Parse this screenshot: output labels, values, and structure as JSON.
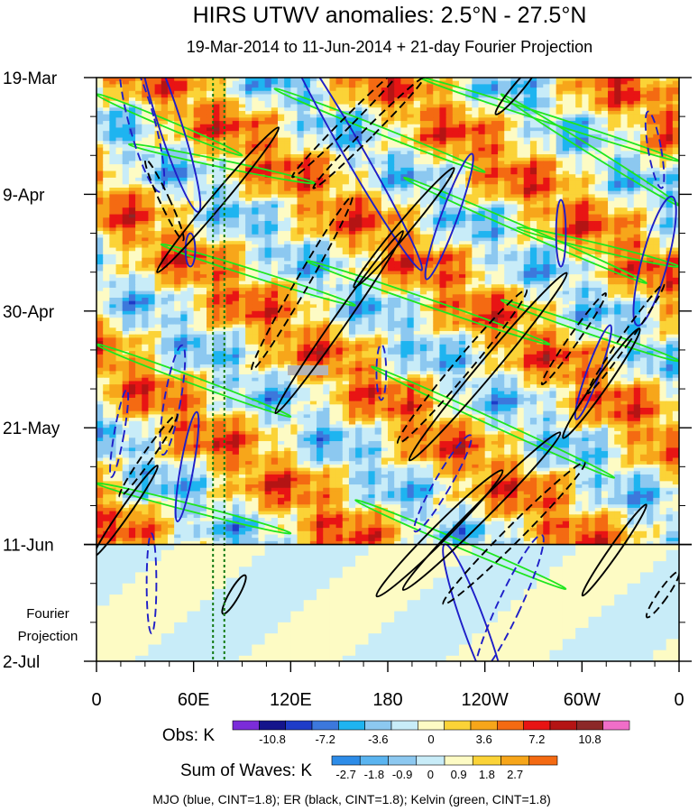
{
  "chart_data": {
    "type": "heatmap",
    "title": "HIRS UTWV anomalies: 2.5°N - 27.5°N",
    "subtitle": "19-Mar-2014 to 11-Jun-2014 + 21-day Fourier Projection",
    "x_tick_labels": [
      "0",
      "60E",
      "120E",
      "180",
      "120W",
      "60W",
      "0"
    ],
    "x_ticks_deg": [
      0,
      60,
      120,
      180,
      240,
      300,
      360
    ],
    "xlim": [
      0,
      360
    ],
    "y_tick_labels": [
      "19-Mar",
      "9-Apr",
      "30-Apr",
      "21-May",
      "11-Jun",
      "2-Jul"
    ],
    "y_ticks_day": [
      0,
      21,
      42,
      63,
      84,
      105
    ],
    "ylim": [
      0,
      105
    ],
    "projection_start_day": 84,
    "projection_label_line1": "Fourier",
    "projection_label_line2": "Projection",
    "reference_longitudes": [
      72,
      79
    ],
    "obs_colorbar": {
      "label": "Obs: K",
      "tick_labels": [
        "-10.8",
        "-7.2",
        "-3.6",
        "0",
        "3.6",
        "7.2",
        "10.8"
      ],
      "colors": [
        "#7b2cd9",
        "#14148c",
        "#1e3cc8",
        "#3c78dc",
        "#1eb4f0",
        "#8cc8f0",
        "#c8ecf8",
        "#fdfbc4",
        "#fbd337",
        "#f7a61a",
        "#f46a12",
        "#e81414",
        "#b41414",
        "#8c2828",
        "#f06ec8"
      ]
    },
    "waves_colorbar": {
      "label": "Sum of Waves: K",
      "tick_labels": [
        "-2.7",
        "-1.8",
        "-0.9",
        "0",
        "0.9",
        "1.8",
        "2.7"
      ],
      "colors": [
        "#2d8ce8",
        "#5ab4f0",
        "#8cc8f0",
        "#c8ecf8",
        "#fdfbc4",
        "#fbd337",
        "#f7a61a",
        "#f46a12"
      ]
    },
    "legend_text": "MJO (blue, CINT=1.8); ER (black, CINT=1.8); Kelvin (green, CINT=1.8)",
    "series": [
      {
        "name": "MJO",
        "color": "#1e1ec8"
      },
      {
        "name": "ER",
        "color": "#000000"
      },
      {
        "name": "Kelvin",
        "color": "#1ee61e"
      }
    ],
    "mjo_contours": [
      {
        "lon": 28,
        "day": 8,
        "rx": 8,
        "ry": 13,
        "rot": -15,
        "dash": true
      },
      {
        "lon": 45,
        "day": 8,
        "rx": 7,
        "ry": 17,
        "rot": -18,
        "dash": false
      },
      {
        "lon": 58,
        "day": 31,
        "rx": 3,
        "ry": 3,
        "rot": 0,
        "dash": false
      },
      {
        "lon": 47,
        "day": 58,
        "rx": 5,
        "ry": 10,
        "rot": 10,
        "dash": true
      },
      {
        "lon": 56,
        "day": 70,
        "rx": 4,
        "ry": 10,
        "rot": 10,
        "dash": false
      },
      {
        "lon": 14,
        "day": 64,
        "rx": 3,
        "ry": 8,
        "rot": 10,
        "dash": true
      },
      {
        "lon": 34,
        "day": 91,
        "rx": 3,
        "ry": 9,
        "rot": 0,
        "dash": true
      },
      {
        "lon": 158,
        "day": 13,
        "rx": 6,
        "ry": 25,
        "rot": -30,
        "dash": false
      },
      {
        "lon": 218,
        "day": 25,
        "rx": 5,
        "ry": 12,
        "rot": 20,
        "dash": false
      },
      {
        "lon": 214,
        "day": 73,
        "rx": 5,
        "ry": 10,
        "rot": 30,
        "dash": true
      },
      {
        "lon": 234,
        "day": 99,
        "rx": 7,
        "ry": 16,
        "rot": -20,
        "dash": false
      },
      {
        "lon": 255,
        "day": 95,
        "rx": 7,
        "ry": 14,
        "rot": 25,
        "dash": true
      },
      {
        "lon": 307,
        "day": 53,
        "rx": 4,
        "ry": 9,
        "rot": 20,
        "dash": false
      },
      {
        "lon": 287,
        "day": 28,
        "rx": 3,
        "ry": 6,
        "rot": 0,
        "dash": false
      },
      {
        "lon": 345,
        "day": 33,
        "rx": 8,
        "ry": 12,
        "rot": 15,
        "dash": false
      },
      {
        "lon": 345,
        "day": 13,
        "rx": 4,
        "ry": 7,
        "rot": -10,
        "dash": true
      },
      {
        "lon": 176,
        "day": 53,
        "rx": 3,
        "ry": 5,
        "rot": 0,
        "dash": true
      }
    ],
    "er_contours": [
      {
        "lon": 42,
        "day": 22,
        "rx": 3,
        "ry": 8,
        "rot": -25,
        "dash": true
      },
      {
        "lon": 75,
        "day": 22,
        "rx": 4,
        "ry": 17,
        "rot": 40,
        "dash": false
      },
      {
        "lon": 127,
        "day": 37,
        "rx": 4,
        "ry": 18,
        "rot": 30,
        "dash": true
      },
      {
        "lon": 150,
        "day": 44,
        "rx": 4,
        "ry": 20,
        "rot": 35,
        "dash": false
      },
      {
        "lon": 155,
        "day": 8,
        "rx": 3,
        "ry": 14,
        "rot": 45,
        "dash": true
      },
      {
        "lon": 168,
        "day": 10,
        "rx": 3,
        "ry": 14,
        "rot": 45,
        "dash": true
      },
      {
        "lon": 190,
        "day": 27,
        "rx": 4,
        "ry": 14,
        "rot": 40,
        "dash": false
      },
      {
        "lon": 226,
        "day": 52,
        "rx": 5,
        "ry": 18,
        "rot": 40,
        "dash": true
      },
      {
        "lon": 242,
        "day": 52,
        "rx": 5,
        "ry": 22,
        "rot": 40,
        "dash": false
      },
      {
        "lon": 212,
        "day": 82,
        "rx": 5,
        "ry": 16,
        "rot": 45,
        "dash": false
      },
      {
        "lon": 238,
        "day": 78,
        "rx": 5,
        "ry": 20,
        "rot": 45,
        "dash": false
      },
      {
        "lon": 258,
        "day": 82,
        "rx": 5,
        "ry": 18,
        "rot": 45,
        "dash": true
      },
      {
        "lon": 312,
        "day": 55,
        "rx": 4,
        "ry": 12,
        "rot": 35,
        "dash": false
      },
      {
        "lon": 295,
        "day": 47,
        "rx": 3,
        "ry": 10,
        "rot": 35,
        "dash": true
      },
      {
        "lon": 327,
        "day": 47,
        "rx": 3,
        "ry": 12,
        "rot": 35,
        "dash": true
      },
      {
        "lon": 320,
        "day": 85,
        "rx": 3,
        "ry": 10,
        "rot": 35,
        "dash": false
      },
      {
        "lon": 260,
        "day": 2,
        "rx": 3,
        "ry": 6,
        "rot": 40,
        "dash": false
      },
      {
        "lon": 18,
        "day": 78,
        "rx": 3,
        "ry": 10,
        "rot": 35,
        "dash": false
      },
      {
        "lon": 32,
        "day": 68,
        "rx": 3,
        "ry": 9,
        "rot": 35,
        "dash": true
      },
      {
        "lon": 85,
        "day": 93,
        "rx": 3,
        "ry": 4,
        "rot": 30,
        "dash": false
      },
      {
        "lon": 350,
        "day": 93,
        "rx": 3,
        "ry": 5,
        "rot": 35,
        "dash": true
      }
    ],
    "kelvin_contours": [
      {
        "lon1": 0,
        "day1": 3,
        "lon2": 90,
        "day2": 14
      },
      {
        "lon1": 20,
        "day1": 12,
        "lon2": 135,
        "day2": 19
      },
      {
        "lon1": 110,
        "day1": 2,
        "lon2": 240,
        "day2": 17
      },
      {
        "lon1": 200,
        "day1": 0,
        "lon2": 360,
        "day2": 15
      },
      {
        "lon1": 250,
        "day1": 3,
        "lon2": 360,
        "day2": 23
      },
      {
        "lon1": 190,
        "day1": 18,
        "lon2": 340,
        "day2": 37
      },
      {
        "lon1": 260,
        "day1": 27,
        "lon2": 360,
        "day2": 34
      },
      {
        "lon1": 130,
        "day1": 33,
        "lon2": 280,
        "day2": 48
      },
      {
        "lon1": 250,
        "day1": 40,
        "lon2": 360,
        "day2": 51
      },
      {
        "lon1": 0,
        "day1": 48,
        "lon2": 120,
        "day2": 61
      },
      {
        "lon1": 170,
        "day1": 52,
        "lon2": 320,
        "day2": 72
      },
      {
        "lon1": 0,
        "day1": 73,
        "lon2": 120,
        "day2": 82
      },
      {
        "lon1": 160,
        "day1": 76,
        "lon2": 290,
        "day2": 92
      },
      {
        "lon1": 40,
        "day1": 30,
        "lon2": 160,
        "day2": 41
      }
    ]
  }
}
